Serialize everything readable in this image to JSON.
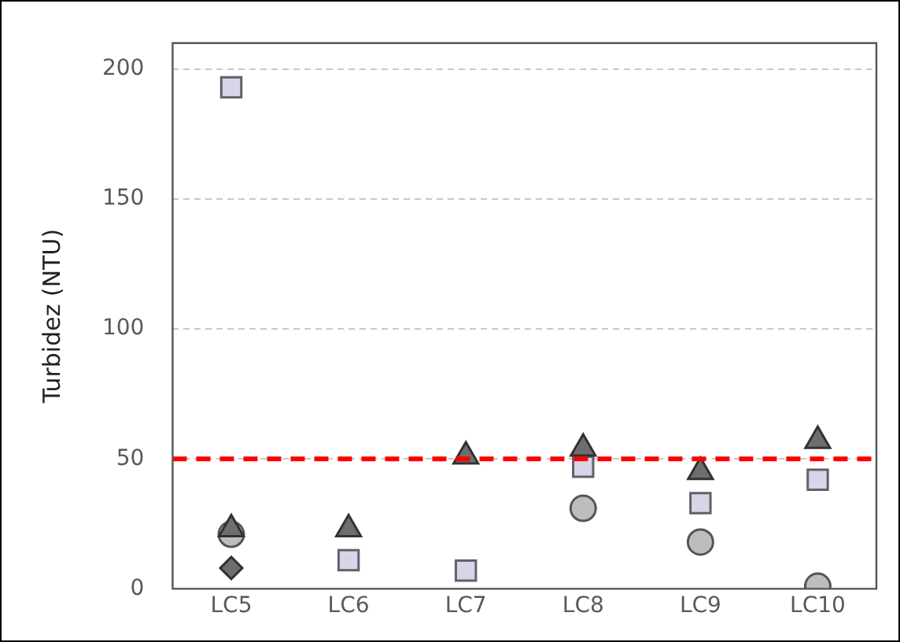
{
  "chart_data": {
    "type": "scatter",
    "ylabel": "Turbidez (NTU)",
    "categories": [
      "LC5",
      "LC6",
      "LC7",
      "LC8",
      "LC9",
      "LC10"
    ],
    "series": [
      {
        "color": "#6e6e6e",
        "marker": "triangle",
        "values": [
          23,
          23,
          51,
          54,
          45,
          57
        ]
      },
      {
        "color": "#bdbdbd",
        "marker": "circle",
        "values": [
          21,
          null,
          null,
          31,
          18,
          1
        ]
      },
      {
        "color": "#d9d5e8",
        "marker": "square",
        "values": [
          193,
          11,
          7,
          47,
          33,
          42
        ]
      },
      {
        "color": "#6e6e6e",
        "marker": "diamond",
        "values": [
          8,
          null,
          null,
          null,
          null,
          null
        ]
      }
    ],
    "ylim": [
      0,
      210
    ],
    "yticks": [
      0,
      50,
      100,
      150,
      200
    ],
    "grid": "y",
    "ref_lines": [
      {
        "axis": "y",
        "value": 50,
        "color": "#ff0000",
        "line_style": "dashed"
      }
    ],
    "legend": false
  }
}
